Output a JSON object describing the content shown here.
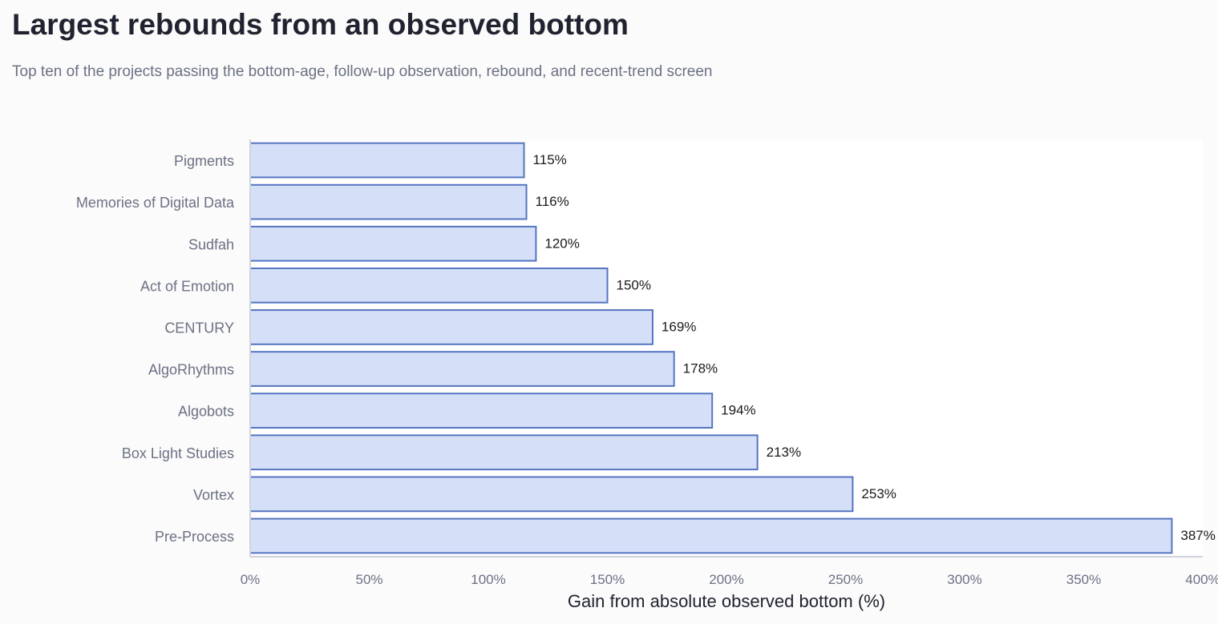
{
  "chart_data": {
    "type": "bar",
    "orientation": "horizontal",
    "title": "Largest rebounds from an observed bottom",
    "subtitle": "Top ten of the projects passing the bottom-age, follow-up observation, rebound, and recent-trend screen",
    "xlabel": "Gain from absolute observed bottom (%)",
    "ylabel": "",
    "categories": [
      "Pigments",
      "Memories of Digital Data",
      "Sudfah",
      "Act of Emotion",
      "CENTURY",
      "AlgoRhythms",
      "Algobots",
      "Box Light Studies",
      "Vortex",
      "Pre-Process"
    ],
    "values": [
      115,
      116,
      120,
      150,
      169,
      178,
      194,
      213,
      253,
      387
    ],
    "value_labels": [
      "115%",
      "116%",
      "120%",
      "150%",
      "169%",
      "178%",
      "194%",
      "213%",
      "253%",
      "387%"
    ],
    "xlim": [
      0,
      400
    ],
    "xticks": [
      0,
      50,
      100,
      150,
      200,
      250,
      300,
      350,
      400
    ],
    "xtick_labels": [
      "0%",
      "50%",
      "100%",
      "150%",
      "200%",
      "250%",
      "300%",
      "350%",
      "400%"
    ],
    "grid": false,
    "legend": "none",
    "colors": {
      "bar_fill": "#d5e0f8",
      "bar_stroke": "#5575c0",
      "plot_background": "#ffffff",
      "page_background": "#fbfbfb",
      "axis_line": "#d0d3dd"
    }
  }
}
